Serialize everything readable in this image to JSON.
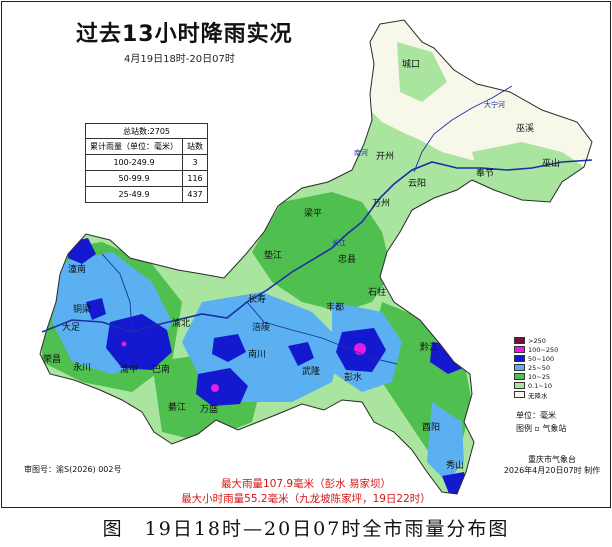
{
  "map": {
    "title": "过去13小时降雨实况",
    "time_range": "4月19日18时-20日07时"
  },
  "stations": {
    "total_label": "总站数:2705",
    "columns": [
      "累计雨量（单位：毫米）",
      "站数"
    ],
    "rows": [
      {
        "range": "100-249.9",
        "count": "3"
      },
      {
        "range": "50-99.9",
        "count": "116"
      },
      {
        "range": "25-49.9",
        "count": "437"
      }
    ]
  },
  "legend": {
    "items": [
      {
        "label": ">250",
        "color": "#7d0a3c"
      },
      {
        "label": "100~250",
        "color": "#e71be3"
      },
      {
        "label": "50~100",
        "color": "#1418cf"
      },
      {
        "label": "25~50",
        "color": "#5ab0f0"
      },
      {
        "label": "10~25",
        "color": "#4fc04f"
      },
      {
        "label": "0.1~10",
        "color": "#a9e59e"
      },
      {
        "label": "无降水",
        "color": "#f7f7ea"
      }
    ],
    "unit": "单位：毫米",
    "station_note": "图例 ▫ 气象站"
  },
  "cities": {
    "chengkou": "城口",
    "wuxi": "巫溪",
    "kaizhou": "开州",
    "wushan": "巫山",
    "fengjie": "奉节",
    "yunyang": "云阳",
    "wanzhou": "万州",
    "liangping": "梁平",
    "dianjiang": "垫江",
    "zhongxian": "忠县",
    "shizhu": "石柱",
    "fengdu": "丰都",
    "changshou": "长寿",
    "fuling": "涪陵",
    "tongnan": "潼南",
    "tongliang": "铜梁",
    "dazu": "大足",
    "rongchang": "荣昌",
    "yongchuan": "永川",
    "yubei": "渝北",
    "yuzhong": "渝中",
    "banan": "巴南",
    "nanchuan": "南川",
    "wulong": "武隆",
    "pengshui": "彭水",
    "qianjiang": "黔江",
    "youyang": "酉阳",
    "xiushan": "秀山",
    "qijiang": "綦江",
    "wansheng": "万盛"
  },
  "rivers": {
    "daning": "大宁河",
    "nanhe": "南河",
    "changjiang": "长江"
  },
  "footer": {
    "credit_org": "重庆市气象台",
    "credit_time": "2026年4月20日07时  制作",
    "map_number": "审图号：渝S(2026) 002号",
    "max_rain": "最大雨量107.9毫米（彭水 易家坝）",
    "max_hourly": "最大小时雨量55.2毫米（九龙坡陈家坪，19日22时）"
  },
  "caption": "图　19日18时—20日07时全市雨量分布图"
}
